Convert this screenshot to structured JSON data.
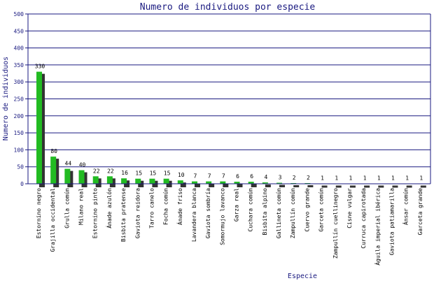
{
  "chart_data": {
    "type": "bar",
    "title": "Numero de individuos por especie",
    "xlabel": "Especie",
    "ylabel": "Numero de individuos",
    "ylim": [
      0,
      500
    ],
    "yticks": [
      0,
      50,
      100,
      150,
      200,
      250,
      300,
      350,
      400,
      450,
      500
    ],
    "grid": true,
    "colors": {
      "bar": "#22bb22",
      "shadow": "#333333",
      "grid": "#1a1a80",
      "text": "#1a1a80"
    },
    "categories": [
      "Estornino negro",
      "Grajilla occidental",
      "Grulla común",
      "Milano real",
      "Estornino pinto",
      "Ánade azulón",
      "Bisbita pratense",
      "Gaviota reidora",
      "Tarro canelo",
      "Focha común",
      "Ánade friso",
      "Lavandera blanca",
      "Gaviota sombría",
      "Somormujo lavanco",
      "Garza real",
      "Cuchara común",
      "Bisbita alpino",
      "Gallineta común",
      "Zampullín común",
      "Cuervo grande",
      "Garceta común",
      "Zampullín cuellinegro",
      "Cisne vulgar",
      "Curruca capirotada",
      "Águila imperial ibérica",
      "Gaviota patiamarilla",
      "Ánsar común",
      "Garceta grande"
    ],
    "values": [
      330,
      80,
      44,
      40,
      22,
      22,
      16,
      15,
      15,
      15,
      10,
      7,
      7,
      7,
      6,
      6,
      4,
      3,
      2,
      2,
      1,
      1,
      1,
      1,
      1,
      1,
      1,
      1
    ]
  }
}
